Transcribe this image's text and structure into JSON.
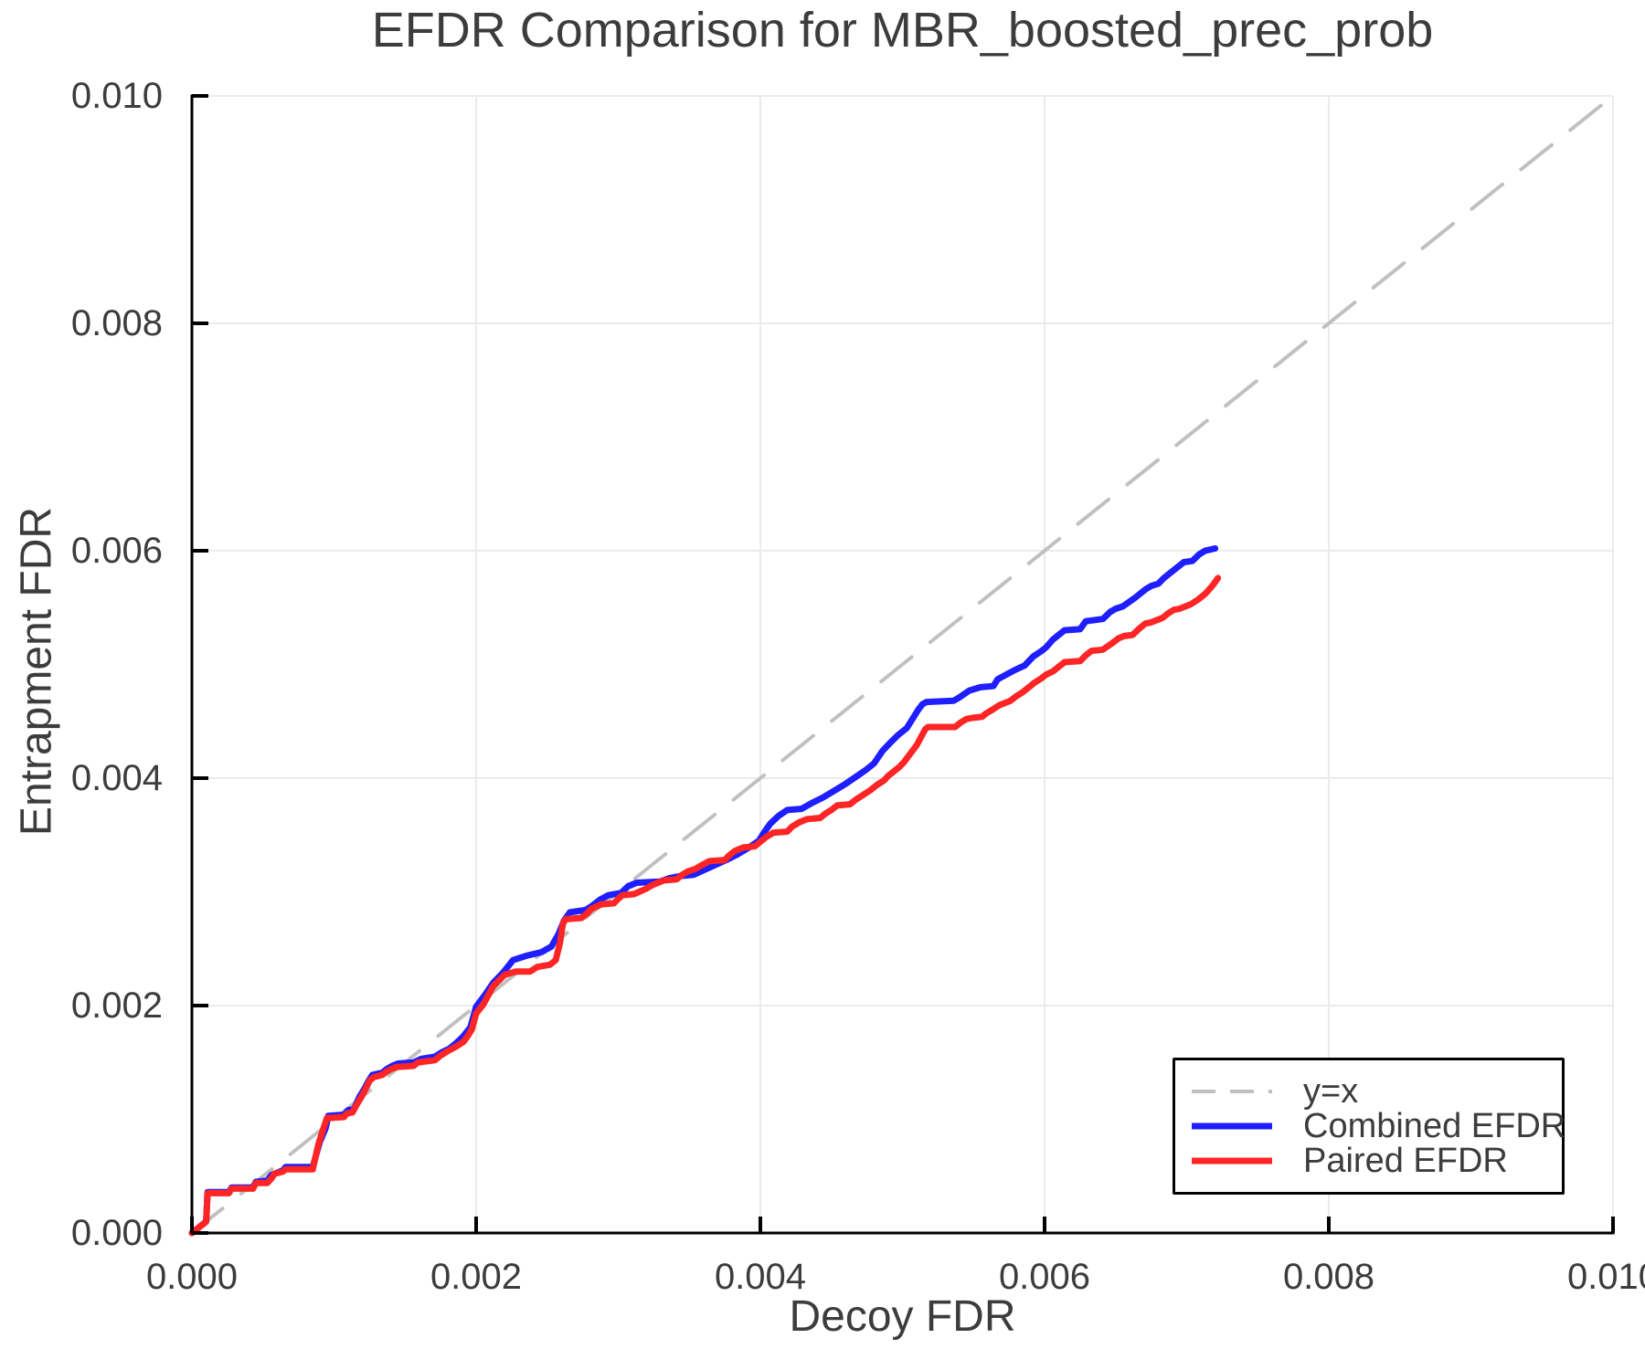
{
  "chart_data": {
    "type": "line",
    "title": "EFDR Comparison for MBR_boosted_prec_prob",
    "xlabel": "Decoy FDR",
    "ylabel": "Entrapment FDR",
    "xlim": [
      0.0,
      0.01
    ],
    "ylim": [
      0.0,
      0.01
    ],
    "xticks": [
      0.0,
      0.002,
      0.004,
      0.006,
      0.008,
      0.01
    ],
    "yticks": [
      0.0,
      0.002,
      0.004,
      0.006,
      0.008,
      0.01
    ],
    "tick_format": "0.000",
    "grid": true,
    "legend_position": "lower right",
    "colors": {
      "background": "#ffffff",
      "grid": "#ebebeb",
      "spine": "#000000",
      "text": "#3c3c3c",
      "legend_border": "#000000"
    },
    "series": [
      {
        "name": "y=x",
        "style": "dashed",
        "color": "#c0c0c0",
        "width": 4,
        "points": [
          [
            0.0,
            0.0
          ],
          [
            0.01,
            0.01
          ]
        ]
      },
      {
        "name": "Combined EFDR",
        "style": "solid",
        "color": "#1e1eff",
        "width": 7,
        "points": [
          [
            0,
            0
          ],
          [
            0.0001,
            0.0001
          ],
          [
            0.00011,
            0.00036
          ],
          [
            0.00026,
            0.00036
          ],
          [
            0.00028,
            0.0004
          ],
          [
            0.00043,
            0.0004
          ],
          [
            0.00045,
            0.00045
          ],
          [
            0.00053,
            0.00046
          ],
          [
            0.00056,
            0.00051
          ],
          [
            0.00064,
            0.00055
          ],
          [
            0.00066,
            0.00058
          ],
          [
            0.00085,
            0.00058
          ],
          [
            0.0009,
            0.0008
          ],
          [
            0.00094,
            0.00092
          ],
          [
            0.00096,
            0.00103
          ],
          [
            0.00107,
            0.00104
          ],
          [
            0.0011,
            0.00108
          ],
          [
            0.00114,
            0.00109
          ],
          [
            0.00118,
            0.0012
          ],
          [
            0.00121,
            0.00126
          ],
          [
            0.00124,
            0.00133
          ],
          [
            0.00127,
            0.00139
          ],
          [
            0.00134,
            0.00141
          ],
          [
            0.00137,
            0.00144
          ],
          [
            0.00141,
            0.00147
          ],
          [
            0.00145,
            0.00149
          ],
          [
            0.00156,
            0.0015
          ],
          [
            0.00161,
            0.00153
          ],
          [
            0.00171,
            0.00155
          ],
          [
            0.00176,
            0.00159
          ],
          [
            0.00181,
            0.00162
          ],
          [
            0.00186,
            0.00167
          ],
          [
            0.00191,
            0.00173
          ],
          [
            0.00196,
            0.00181
          ],
          [
            0.002,
            0.00199
          ],
          [
            0.00206,
            0.00209
          ],
          [
            0.00212,
            0.0022
          ],
          [
            0.00219,
            0.00229
          ],
          [
            0.00226,
            0.0024
          ],
          [
            0.00236,
            0.00244
          ],
          [
            0.00246,
            0.00247
          ],
          [
            0.00253,
            0.00252
          ],
          [
            0.00258,
            0.00263
          ],
          [
            0.00262,
            0.00275
          ],
          [
            0.00266,
            0.00282
          ],
          [
            0.00277,
            0.00284
          ],
          [
            0.00282,
            0.00288
          ],
          [
            0.00287,
            0.00293
          ],
          [
            0.00293,
            0.00297
          ],
          [
            0.00302,
            0.00299
          ],
          [
            0.00307,
            0.00305
          ],
          [
            0.00313,
            0.00308
          ],
          [
            0.00329,
            0.00309
          ],
          [
            0.00336,
            0.00312
          ],
          [
            0.00344,
            0.00314
          ],
          [
            0.00353,
            0.00315
          ],
          [
            0.0036,
            0.00319
          ],
          [
            0.00367,
            0.00323
          ],
          [
            0.00376,
            0.00328
          ],
          [
            0.00384,
            0.00333
          ],
          [
            0.00392,
            0.00339
          ],
          [
            0.00399,
            0.00345
          ],
          [
            0.00403,
            0.00353
          ],
          [
            0.00407,
            0.0036
          ],
          [
            0.00413,
            0.00367
          ],
          [
            0.00419,
            0.00372
          ],
          [
            0.00429,
            0.00373
          ],
          [
            0.00436,
            0.00378
          ],
          [
            0.00444,
            0.00383
          ],
          [
            0.00452,
            0.00389
          ],
          [
            0.0046,
            0.00395
          ],
          [
            0.00467,
            0.00401
          ],
          [
            0.00474,
            0.00407
          ],
          [
            0.0048,
            0.00413
          ],
          [
            0.00486,
            0.00424
          ],
          [
            0.00492,
            0.00432
          ],
          [
            0.00497,
            0.00438
          ],
          [
            0.00503,
            0.00444
          ],
          [
            0.00507,
            0.00452
          ],
          [
            0.00511,
            0.0046
          ],
          [
            0.00514,
            0.00465
          ],
          [
            0.00517,
            0.00467
          ],
          [
            0.00536,
            0.00468
          ],
          [
            0.0054,
            0.00471
          ],
          [
            0.00547,
            0.00477
          ],
          [
            0.00555,
            0.0048
          ],
          [
            0.00564,
            0.00481
          ],
          [
            0.00567,
            0.00487
          ],
          [
            0.00573,
            0.00491
          ],
          [
            0.00579,
            0.00495
          ],
          [
            0.00586,
            0.00499
          ],
          [
            0.00592,
            0.00507
          ],
          [
            0.00598,
            0.00512
          ],
          [
            0.00601,
            0.00515
          ],
          [
            0.00606,
            0.00522
          ],
          [
            0.0061,
            0.00526
          ],
          [
            0.00614,
            0.0053
          ],
          [
            0.00625,
            0.00531
          ],
          [
            0.00629,
            0.00538
          ],
          [
            0.00641,
            0.0054
          ],
          [
            0.00646,
            0.00546
          ],
          [
            0.0065,
            0.00549
          ],
          [
            0.00655,
            0.00551
          ],
          [
            0.00663,
            0.00558
          ],
          [
            0.00667,
            0.00562
          ],
          [
            0.00671,
            0.00566
          ],
          [
            0.00675,
            0.00569
          ],
          [
            0.0068,
            0.00571
          ],
          [
            0.00684,
            0.00576
          ],
          [
            0.00688,
            0.0058
          ],
          [
            0.00692,
            0.00584
          ],
          [
            0.00698,
            0.0059
          ],
          [
            0.00704,
            0.00591
          ],
          [
            0.00709,
            0.00597
          ],
          [
            0.00713,
            0.006
          ],
          [
            0.0072,
            0.00602
          ]
        ]
      },
      {
        "name": "Paired EFDR",
        "style": "solid",
        "color": "#ff2525",
        "width": 7,
        "points": [
          [
            0,
            0
          ],
          [
            0.0001,
            0.0001
          ],
          [
            0.00011,
            0.00035
          ],
          [
            0.00026,
            0.00035
          ],
          [
            0.00028,
            0.00039
          ],
          [
            0.00043,
            0.00039
          ],
          [
            0.00045,
            0.00044
          ],
          [
            0.00053,
            0.00044
          ],
          [
            0.00056,
            0.00048
          ],
          [
            0.00058,
            0.00052
          ],
          [
            0.00064,
            0.00054
          ],
          [
            0.00066,
            0.00056
          ],
          [
            0.00085,
            0.00056
          ],
          [
            0.00089,
            0.00078
          ],
          [
            0.00092,
            0.0009
          ],
          [
            0.00095,
            0.00101
          ],
          [
            0.00107,
            0.00102
          ],
          [
            0.00109,
            0.00105
          ],
          [
            0.00113,
            0.00106
          ],
          [
            0.00116,
            0.00113
          ],
          [
            0.00119,
            0.00119
          ],
          [
            0.00122,
            0.00126
          ],
          [
            0.00125,
            0.00134
          ],
          [
            0.00128,
            0.00137
          ],
          [
            0.00134,
            0.00139
          ],
          [
            0.00137,
            0.00142
          ],
          [
            0.0014,
            0.00144
          ],
          [
            0.00144,
            0.00146
          ],
          [
            0.00156,
            0.00147
          ],
          [
            0.00159,
            0.0015
          ],
          [
            0.00171,
            0.00152
          ],
          [
            0.00175,
            0.00156
          ],
          [
            0.0018,
            0.0016
          ],
          [
            0.00186,
            0.00164
          ],
          [
            0.00191,
            0.00168
          ],
          [
            0.00194,
            0.00173
          ],
          [
            0.00197,
            0.00179
          ],
          [
            0.002,
            0.00193
          ],
          [
            0.00205,
            0.00201
          ],
          [
            0.00212,
            0.00217
          ],
          [
            0.0022,
            0.00227
          ],
          [
            0.00228,
            0.0023
          ],
          [
            0.00238,
            0.0023
          ],
          [
            0.00243,
            0.00234
          ],
          [
            0.00252,
            0.00236
          ],
          [
            0.00256,
            0.0024
          ],
          [
            0.00259,
            0.00255
          ],
          [
            0.00261,
            0.00272
          ],
          [
            0.00263,
            0.00276
          ],
          [
            0.00274,
            0.00277
          ],
          [
            0.00278,
            0.00281
          ],
          [
            0.00281,
            0.00285
          ],
          [
            0.00288,
            0.00289
          ],
          [
            0.00297,
            0.0029
          ],
          [
            0.003,
            0.00294
          ],
          [
            0.00303,
            0.00297
          ],
          [
            0.00311,
            0.00298
          ],
          [
            0.0032,
            0.00303
          ],
          [
            0.00324,
            0.00306
          ],
          [
            0.00332,
            0.0031
          ],
          [
            0.00341,
            0.00311
          ],
          [
            0.00345,
            0.00315
          ],
          [
            0.00349,
            0.00318
          ],
          [
            0.00354,
            0.0032
          ],
          [
            0.00358,
            0.00323
          ],
          [
            0.00364,
            0.00327
          ],
          [
            0.00375,
            0.00328
          ],
          [
            0.00378,
            0.00332
          ],
          [
            0.00382,
            0.00336
          ],
          [
            0.00388,
            0.00339
          ],
          [
            0.00396,
            0.0034
          ],
          [
            0.004,
            0.00344
          ],
          [
            0.00404,
            0.00348
          ],
          [
            0.00409,
            0.00352
          ],
          [
            0.00419,
            0.00353
          ],
          [
            0.00422,
            0.00357
          ],
          [
            0.00427,
            0.00361
          ],
          [
            0.00433,
            0.00364
          ],
          [
            0.00442,
            0.00365
          ],
          [
            0.00446,
            0.00369
          ],
          [
            0.0045,
            0.00372
          ],
          [
            0.00454,
            0.00376
          ],
          [
            0.00463,
            0.00377
          ],
          [
            0.00467,
            0.00381
          ],
          [
            0.00472,
            0.00385
          ],
          [
            0.00477,
            0.00389
          ],
          [
            0.00482,
            0.00394
          ],
          [
            0.00487,
            0.00398
          ],
          [
            0.0049,
            0.00402
          ],
          [
            0.00494,
            0.00406
          ],
          [
            0.00498,
            0.0041
          ],
          [
            0.00501,
            0.00414
          ],
          [
            0.00504,
            0.00419
          ],
          [
            0.00507,
            0.00424
          ],
          [
            0.0051,
            0.00429
          ],
          [
            0.00513,
            0.00436
          ],
          [
            0.00516,
            0.00443
          ],
          [
            0.00518,
            0.00445
          ],
          [
            0.00537,
            0.00445
          ],
          [
            0.00541,
            0.00449
          ],
          [
            0.00545,
            0.00452
          ],
          [
            0.00549,
            0.00453
          ],
          [
            0.00556,
            0.00454
          ],
          [
            0.00559,
            0.00457
          ],
          [
            0.00563,
            0.0046
          ],
          [
            0.00568,
            0.00464
          ],
          [
            0.00572,
            0.00466
          ],
          [
            0.00576,
            0.00468
          ],
          [
            0.0058,
            0.00472
          ],
          [
            0.00585,
            0.00476
          ],
          [
            0.00589,
            0.0048
          ],
          [
            0.00593,
            0.00484
          ],
          [
            0.00598,
            0.00488
          ],
          [
            0.00601,
            0.00491
          ],
          [
            0.00606,
            0.00494
          ],
          [
            0.0061,
            0.00498
          ],
          [
            0.00614,
            0.00502
          ],
          [
            0.00625,
            0.00503
          ],
          [
            0.00629,
            0.00508
          ],
          [
            0.00633,
            0.00512
          ],
          [
            0.00641,
            0.00513
          ],
          [
            0.00648,
            0.00519
          ],
          [
            0.00652,
            0.00523
          ],
          [
            0.00656,
            0.00525
          ],
          [
            0.00662,
            0.00526
          ],
          [
            0.00667,
            0.00532
          ],
          [
            0.00671,
            0.00536
          ],
          [
            0.00675,
            0.00537
          ],
          [
            0.00683,
            0.00541
          ],
          [
            0.00687,
            0.00545
          ],
          [
            0.00691,
            0.00548
          ],
          [
            0.00695,
            0.00549
          ],
          [
            0.00703,
            0.00553
          ],
          [
            0.00708,
            0.00557
          ],
          [
            0.00713,
            0.00562
          ],
          [
            0.00718,
            0.00569
          ],
          [
            0.00722,
            0.00576
          ]
        ]
      }
    ]
  }
}
